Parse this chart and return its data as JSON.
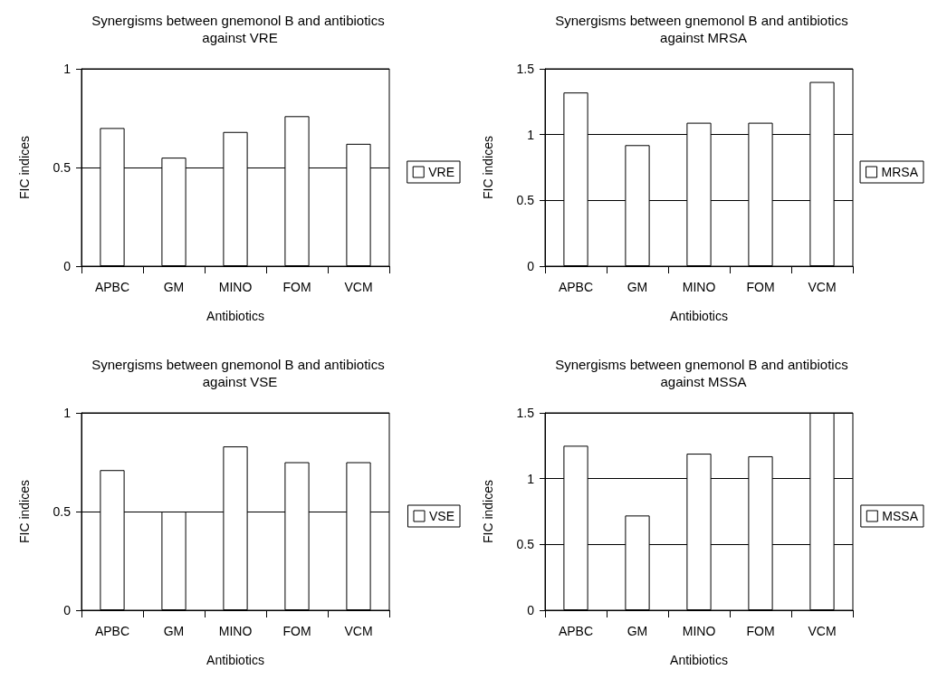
{
  "chart_data": [
    {
      "type": "bar",
      "title": "Synergisms between gnemonol B and antibiotics against VRE",
      "xlabel": "Antibiotics",
      "ylabel": "FIC indices",
      "categories": [
        "APBC",
        "GM",
        "MINO",
        "FOM",
        "VCM"
      ],
      "series": [
        {
          "name": "VRE",
          "color": "#ffffff",
          "values": [
            0.7,
            0.55,
            0.68,
            0.76,
            0.62
          ]
        }
      ],
      "ylim": [
        0,
        1
      ],
      "yticks": [
        0,
        0.5,
        1
      ],
      "grid": "y",
      "legend": "right"
    },
    {
      "type": "bar",
      "title": "Synergisms between gnemonol B and antibiotics against MRSA",
      "xlabel": "Antibiotics",
      "ylabel": "FIC indices",
      "categories": [
        "APBC",
        "GM",
        "MINO",
        "FOM",
        "VCM"
      ],
      "series": [
        {
          "name": "MRSA",
          "color": "#ffffff",
          "values": [
            1.32,
            0.92,
            1.09,
            1.09,
            1.4
          ]
        }
      ],
      "ylim": [
        0,
        1.5
      ],
      "yticks": [
        0,
        0.5,
        1,
        1.5
      ],
      "grid": "y",
      "legend": "right"
    },
    {
      "type": "bar",
      "title": "Synergisms between gnemonol B and antibiotics against VSE",
      "xlabel": "Antibiotics",
      "ylabel": "FIC indices",
      "categories": [
        "APBC",
        "GM",
        "MINO",
        "FOM",
        "VCM"
      ],
      "series": [
        {
          "name": "VSE",
          "color": "#ffffff",
          "values": [
            0.71,
            0.5,
            0.83,
            0.75,
            0.75
          ]
        }
      ],
      "ylim": [
        0,
        1
      ],
      "yticks": [
        0,
        0.5,
        1
      ],
      "grid": "y",
      "legend": "right"
    },
    {
      "type": "bar",
      "title": "Synergisms between gnemonol B and antibiotics against MSSA",
      "xlabel": "Antibiotics",
      "ylabel": "FIC indices",
      "categories": [
        "APBC",
        "GM",
        "MINO",
        "FOM",
        "VCM"
      ],
      "series": [
        {
          "name": "MSSA",
          "color": "#ffffff",
          "values": [
            1.25,
            0.72,
            1.19,
            1.17,
            1.5
          ]
        }
      ],
      "ylim": [
        0,
        1.5
      ],
      "yticks": [
        0,
        0.5,
        1,
        1.5
      ],
      "grid": "y",
      "legend": "right"
    }
  ]
}
